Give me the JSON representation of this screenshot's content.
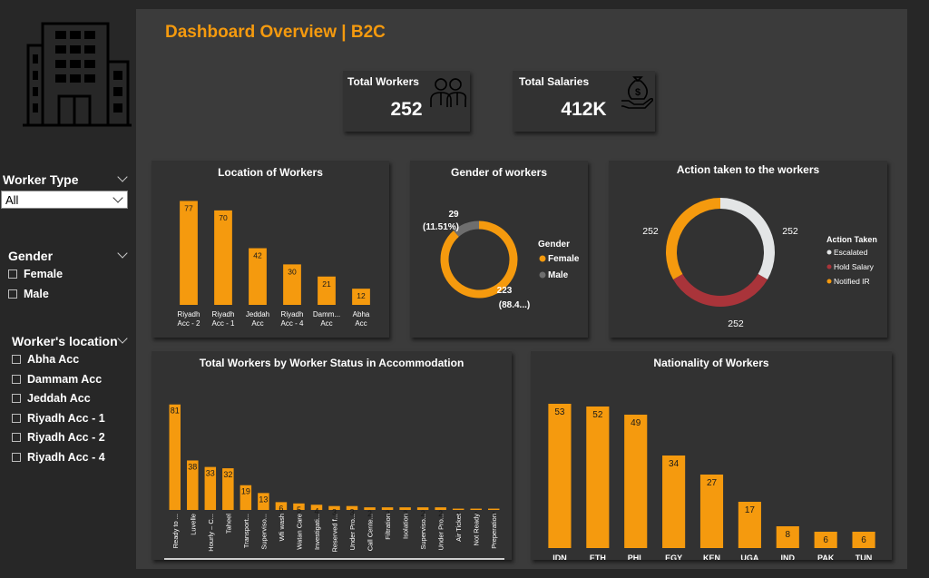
{
  "dashboard_title": "Dashboard Overview | B2C",
  "kpis": {
    "workers": {
      "label": "Total Workers",
      "value": "252",
      "icon": "workers-icon"
    },
    "salaries": {
      "label": "Total Salaries",
      "value": "412K",
      "icon": "money-bag-icon"
    }
  },
  "slicers": {
    "worker_type": {
      "title": "Worker Type",
      "selected": "All"
    },
    "gender": {
      "title": "Gender",
      "options": [
        "Female",
        "Male"
      ]
    },
    "location": {
      "title": "Worker's location",
      "options": [
        "Abha Acc",
        "Dammam Acc",
        "Jeddah Acc",
        "Riyadh Acc - 1",
        "Riyadh Acc - 2",
        "Riyadh Acc - 4"
      ]
    }
  },
  "colors": {
    "accent": "#F59A0E",
    "escalated": "#E3E5E6",
    "hold": "#A9343A",
    "male": "#6E6E6E",
    "card": "#323232"
  },
  "chart_data": [
    {
      "id": "location",
      "type": "bar",
      "title": "Location of Workers",
      "categories": [
        [
          "Riyadh",
          "Acc - 2"
        ],
        [
          "Riyadh",
          "Acc - 1"
        ],
        [
          "Jeddah",
          "Acc"
        ],
        [
          "Riyadh",
          "Acc - 4"
        ],
        [
          "Damm...",
          "Acc"
        ],
        [
          "Abha",
          "Acc"
        ]
      ],
      "values": [
        77,
        70,
        42,
        30,
        21,
        12
      ],
      "ylim": [
        0,
        80
      ]
    },
    {
      "id": "gender",
      "type": "pie",
      "title": "Gender of workers",
      "legend_title": "Gender",
      "legend_position": "right",
      "slices": [
        {
          "label": "Female",
          "value": 223,
          "pct": "(88.4...)"
        },
        {
          "label": "Male",
          "value": 29,
          "pct": "(11.51%)"
        }
      ]
    },
    {
      "id": "action",
      "type": "pie",
      "title": "Action taken to the workers",
      "legend_title": "Action Taken",
      "legend_position": "right",
      "slices": [
        {
          "label": "Escalated",
          "value": 252
        },
        {
          "label": "Hold Salary",
          "value": 252
        },
        {
          "label": "Notified IR",
          "value": 252
        }
      ]
    },
    {
      "id": "status",
      "type": "bar",
      "title": "Total Workers by Worker Status in Accommodation",
      "categories": [
        "Ready to ...",
        "Luvelle",
        "Hourly – C...",
        "Taheel",
        "Transport...",
        "Superviso...",
        "Wfi wash",
        "Watan Care",
        "Investigati...",
        "Reserved f...",
        "Under Pro...",
        "Call Cente...",
        "Filtration",
        "Isolation",
        "Superviso...",
        "Under Pro...",
        "Air Ticket",
        "Not Ready",
        "Preperation"
      ],
      "values": [
        81,
        38,
        33,
        32,
        19,
        13,
        6,
        5,
        4,
        3,
        3,
        2,
        2,
        2,
        2,
        2,
        1,
        1,
        1
      ],
      "ylim": [
        0,
        85
      ]
    },
    {
      "id": "nationality",
      "type": "bar",
      "title": "Nationality of Workers",
      "categories": [
        "IDN",
        "ETH",
        "PHL",
        "EGY",
        "KEN",
        "UGA",
        "IND",
        "PAK",
        "TUN"
      ],
      "values": [
        53,
        52,
        49,
        34,
        27,
        17,
        8,
        6,
        6
      ],
      "ylim": [
        0,
        55
      ]
    }
  ]
}
